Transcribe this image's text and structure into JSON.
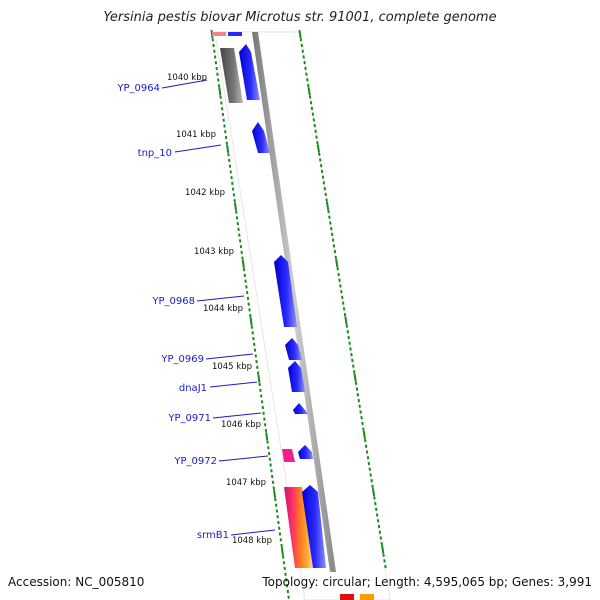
{
  "title": "Yersinia pestis biovar Microtus str. 91001, complete genome",
  "footer": {
    "accession": "Accession: NC_005810",
    "summary": "Topology: circular; Length: 4,595,065 bp; Genes: 3,991"
  },
  "colors": {
    "gene_forward": "#1010ee",
    "pseudo_gene": "#666666",
    "backbone": "#9a9a9a",
    "tick": "#1a8a1a",
    "label": "#1a1acc",
    "rna_pink": "#ee2288",
    "rna_orange": "#ff9900"
  },
  "scale_ticks": [
    {
      "label": "1040 kbp",
      "kbp": 1040
    },
    {
      "label": "1041 kbp",
      "kbp": 1041
    },
    {
      "label": "1042 kbp",
      "kbp": 1042
    },
    {
      "label": "1043 kbp",
      "kbp": 1043
    },
    {
      "label": "1044 kbp",
      "kbp": 1044
    },
    {
      "label": "1045 kbp",
      "kbp": 1045
    },
    {
      "label": "1046 kbp",
      "kbp": 1046
    },
    {
      "label": "1047 kbp",
      "kbp": 1047
    },
    {
      "label": "1048 kbp",
      "kbp": 1048
    }
  ],
  "gene_labels": [
    {
      "name": "YP_0964"
    },
    {
      "name": "tnp_10"
    },
    {
      "name": "YP_0968"
    },
    {
      "name": "YP_0969"
    },
    {
      "name": "dnaJ1"
    },
    {
      "name": "YP_0971"
    },
    {
      "name": "YP_0972"
    },
    {
      "name": "srmB1"
    }
  ]
}
